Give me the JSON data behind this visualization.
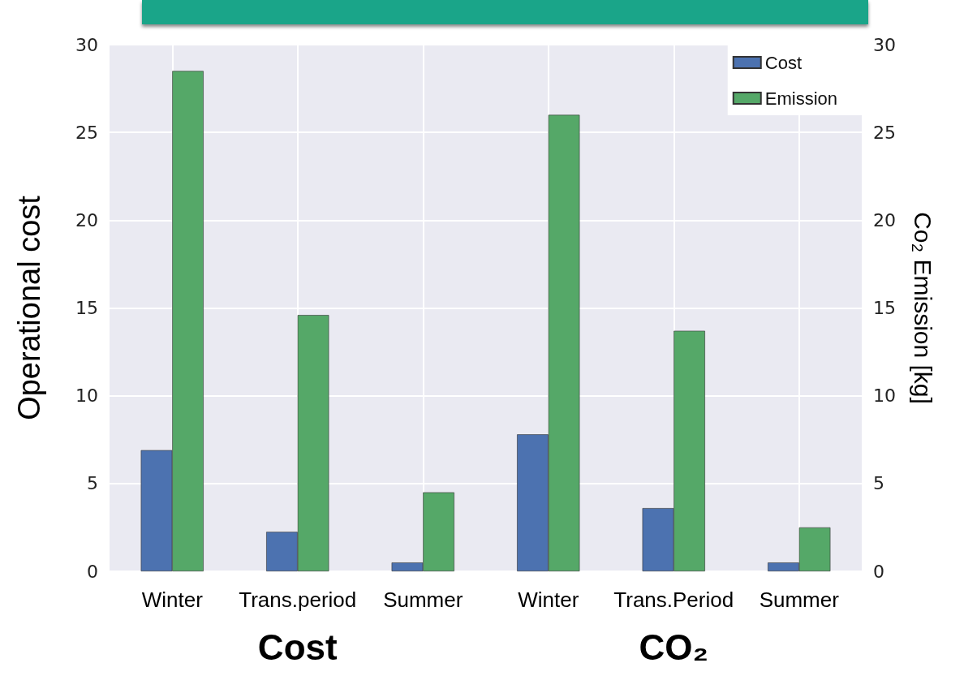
{
  "chart_data": {
    "type": "bar",
    "categories": [
      "Winter",
      "Trans.period",
      "Summer",
      "Winter",
      "Trans.Period",
      "Summer"
    ],
    "series": [
      {
        "name": "Cost",
        "color": "#4c72b0",
        "values": [
          6.9,
          2.25,
          0.5,
          7.8,
          3.6,
          0.5
        ]
      },
      {
        "name": "Emission",
        "color": "#55a868",
        "values": [
          28.5,
          14.6,
          4.5,
          26.0,
          13.7,
          2.5
        ]
      }
    ],
    "ylabel": "Operational cost",
    "y2label": "Co₂ Emission [kg]",
    "ylim": [
      0,
      30
    ],
    "yticks": [
      0,
      5,
      10,
      15,
      20,
      25,
      30
    ],
    "y2lim": [
      0,
      30
    ],
    "y2ticks": [
      0,
      5,
      10,
      15,
      20,
      25,
      30
    ],
    "annotations": [
      "Cost",
      "CO₂"
    ],
    "grid": true,
    "legend": "top right"
  }
}
